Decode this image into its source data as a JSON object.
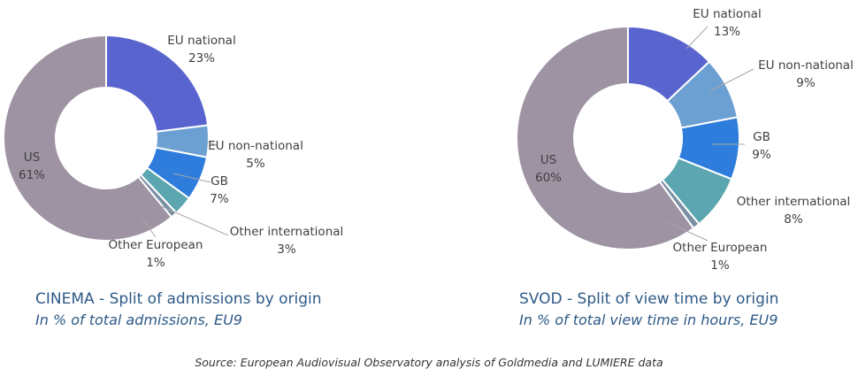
{
  "chart_data": [
    {
      "type": "pie",
      "title": "CINEMA - Split of admissions by origin",
      "subtitle": "In % of total admissions, EU9",
      "unit": "%",
      "series": [
        {
          "label": "EU national",
          "value": 23,
          "value_label": "23%",
          "color": "#5a64cf"
        },
        {
          "label": "EU non-national",
          "value": 5,
          "value_label": "5%",
          "color": "#6ca0d2"
        },
        {
          "label": "GB",
          "value": 7,
          "value_label": "7%",
          "color": "#2e7ddd"
        },
        {
          "label": "Other international",
          "value": 3,
          "value_label": "3%",
          "color": "#5ba6b0"
        },
        {
          "label": "Other European",
          "value": 1,
          "value_label": "1%",
          "color": "#7b8fa4"
        },
        {
          "label": "US",
          "value": 61,
          "value_label": "61%",
          "color": "#9e93a3"
        }
      ]
    },
    {
      "type": "pie",
      "title": "SVOD - Split of view time by origin",
      "subtitle": "In % of total view time in hours, EU9",
      "unit": "%",
      "series": [
        {
          "label": "EU national",
          "value": 13,
          "value_label": "13%",
          "color": "#5a64cf"
        },
        {
          "label": "EU non-national",
          "value": 9,
          "value_label": "9%",
          "color": "#6ca0d2"
        },
        {
          "label": "GB",
          "value": 9,
          "value_label": "9%",
          "color": "#2e7ddd"
        },
        {
          "label": "Other international",
          "value": 8,
          "value_label": "8%",
          "color": "#5ba6b0"
        },
        {
          "label": "Other European",
          "value": 1,
          "value_label": "1%",
          "color": "#7b8fa4"
        },
        {
          "label": "US",
          "value": 60,
          "value_label": "60%",
          "color": "#9e93a3"
        }
      ]
    }
  ],
  "source": "Source: European Audiovisual Observatory analysis of Goldmedia and LUMIERE data"
}
